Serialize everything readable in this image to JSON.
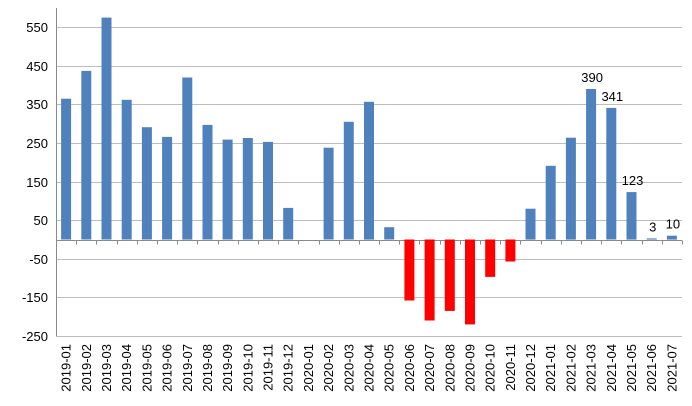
{
  "chart_data": {
    "type": "bar",
    "title": "",
    "xlabel": "",
    "ylabel": "",
    "ylim": [
      -250,
      600
    ],
    "yticks": [
      -250,
      -150,
      -50,
      50,
      150,
      250,
      350,
      450,
      550
    ],
    "grid": true,
    "legend": "none",
    "colors": {
      "positive": "#4f81bd",
      "negative": "#ff0000",
      "grid": "#bdbdbd",
      "axis": "#8a8a8a"
    },
    "categories": [
      "2019-01",
      "2019-02",
      "2019-03",
      "2019-04",
      "2019-05",
      "2019-06",
      "2019-07",
      "2019-08",
      "2019-09",
      "2019-10",
      "2019-11",
      "2019-12",
      "2020-01",
      "2020-02",
      "2020-03",
      "2020-04",
      "2020-05",
      "2020-06",
      "2020-07",
      "2020-08",
      "2020-09",
      "2020-10",
      "2020-11",
      "2020-12",
      "2021-01",
      "2021-02",
      "2021-03",
      "2021-04",
      "2021-05",
      "2021-06",
      "2021-07"
    ],
    "values": [
      365,
      437,
      575,
      362,
      291,
      266,
      420,
      297,
      259,
      263,
      253,
      82,
      0,
      238,
      305,
      357,
      32,
      -158,
      -210,
      -185,
      -220,
      -97,
      -57,
      80,
      191,
      264,
      390,
      341,
      123,
      3,
      10
    ],
    "data_labels": [
      {
        "index": 26,
        "text": "390"
      },
      {
        "index": 27,
        "text": "341"
      },
      {
        "index": 28,
        "text": "123"
      },
      {
        "index": 29,
        "text": "3"
      },
      {
        "index": 30,
        "text": "10"
      }
    ]
  }
}
